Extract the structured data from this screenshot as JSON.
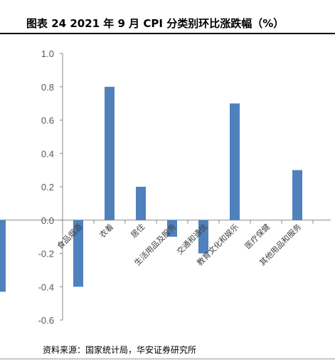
{
  "title": "图表 24 2021 年 9 月 CPI 分类别环比涨跌幅（%）",
  "source": "资料来源：国家统计局，华安证券研究所",
  "chart_data": {
    "type": "bar",
    "categories": [
      "食品烟酒",
      "衣着",
      "居住",
      "生活用品及服务",
      "交通和通信",
      "教育文化和娱乐",
      "医疗保健",
      "其他用品和服务"
    ],
    "values": [
      -0.4,
      0.8,
      0.2,
      -0.1,
      -0.2,
      0.7,
      0.0,
      0.3
    ],
    "yticks": [
      "1.0",
      "0.8",
      "0.6",
      "0.4",
      "0.2",
      "0.0",
      "-0.2",
      "-0.4",
      "-0.6"
    ],
    "ylim": [
      -0.6,
      1.0
    ],
    "left_partial_bar_value": -0.43,
    "bar_color": "#4f81bd",
    "grid": false,
    "legend": "none"
  }
}
